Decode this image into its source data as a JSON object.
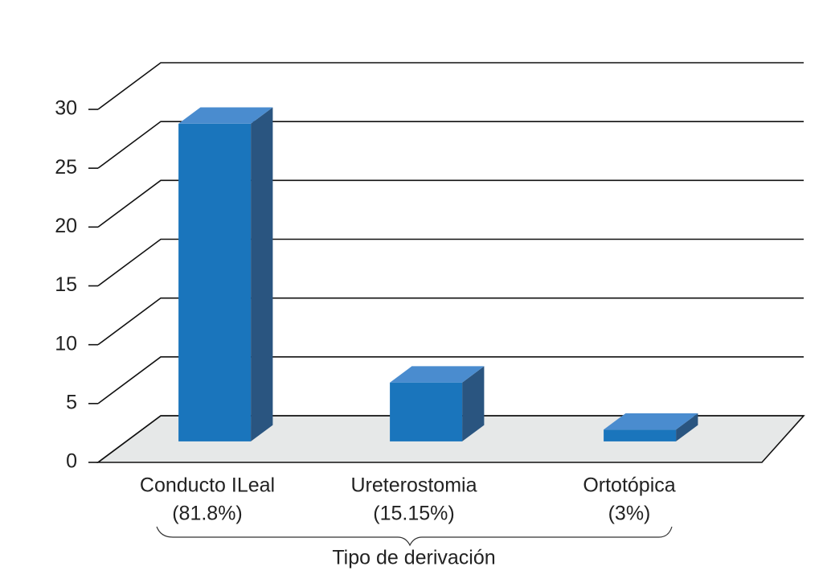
{
  "chart_data": {
    "type": "bar3d",
    "categories": [
      [
        "Conducto ILeal",
        "(81.8%)"
      ],
      [
        "Ureterostomia",
        "(15.15%)"
      ],
      [
        "Ortotópica",
        "(3%)"
      ]
    ],
    "values": [
      27,
      5,
      1
    ],
    "color": "#1a75bc",
    "x_label": "Tipo de derivación",
    "ylim": [
      0,
      30
    ],
    "yticks": [
      0,
      5,
      10,
      15,
      20,
      25,
      30
    ],
    "grid": true
  }
}
